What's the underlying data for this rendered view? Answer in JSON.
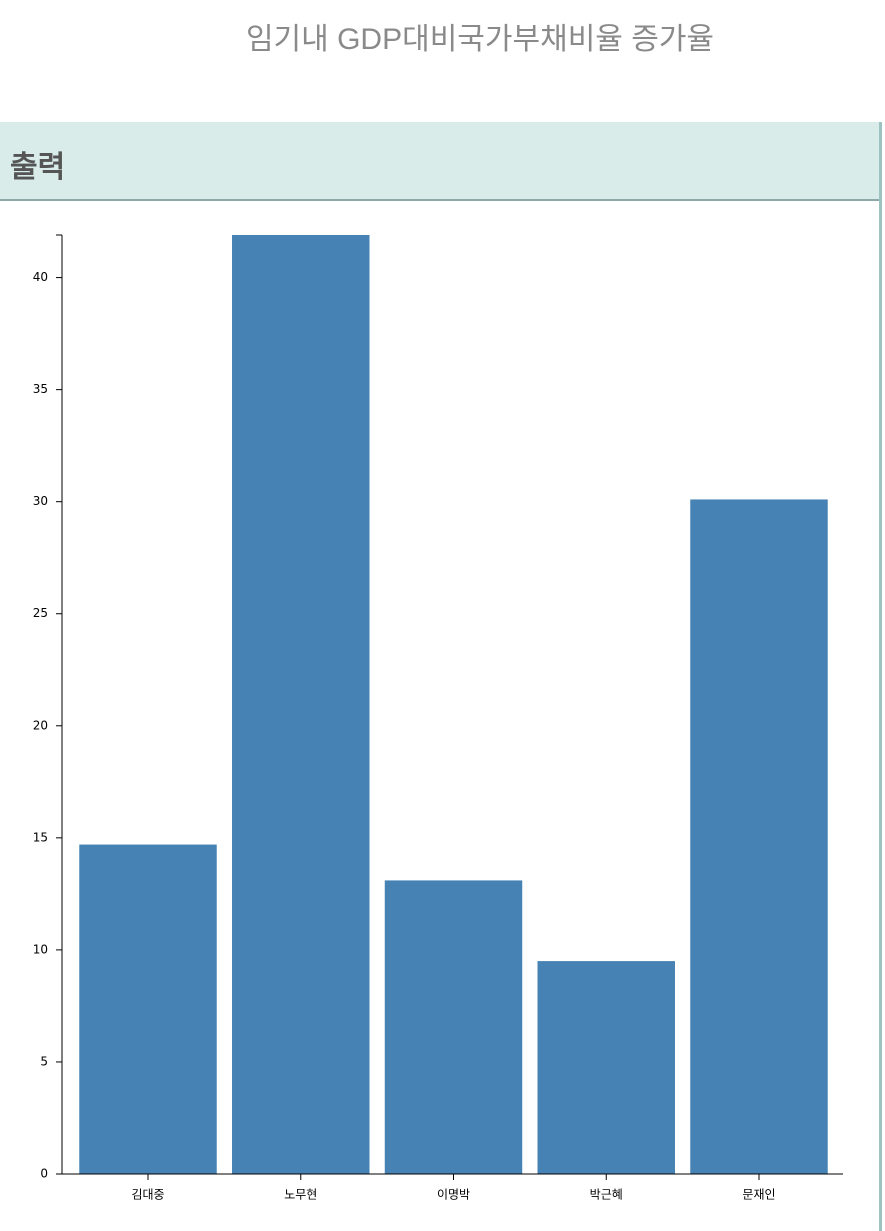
{
  "header": {
    "title": "임기내 GDP대비국가부채비율 증가율"
  },
  "panel": {
    "title": "출력"
  },
  "chart_data": {
    "type": "bar",
    "categories": [
      "김대중",
      "노무현",
      "이명박",
      "박근혜",
      "문재인"
    ],
    "values": [
      14.7,
      41.9,
      13.1,
      9.5,
      30.1
    ],
    "color": "#4682b4",
    "ylim": [
      0,
      41.9
    ],
    "yticks": [
      0,
      5,
      10,
      15,
      20,
      25,
      30,
      35,
      40
    ]
  }
}
